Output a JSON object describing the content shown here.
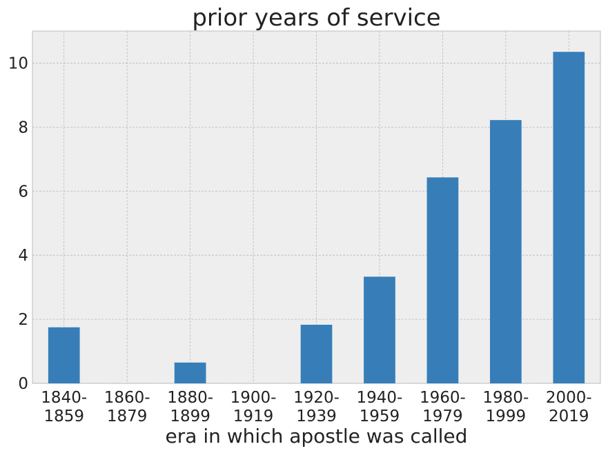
{
  "chart_data": {
    "type": "bar",
    "title": "prior years of service",
    "xlabel": "era in which apostle was called",
    "ylabel": "",
    "categories": [
      [
        "1840-",
        "1859"
      ],
      [
        "1860-",
        "1879"
      ],
      [
        "1880-",
        "1899"
      ],
      [
        "1900-",
        "1919"
      ],
      [
        "1920-",
        "1939"
      ],
      [
        "1940-",
        "1959"
      ],
      [
        "1960-",
        "1979"
      ],
      [
        "1980-",
        "1999"
      ],
      [
        "2000-",
        "2019"
      ]
    ],
    "values": [
      1.75,
      0,
      0.65,
      0,
      1.83,
      3.33,
      6.43,
      8.22,
      10.35
    ],
    "ylim": [
      0,
      11
    ],
    "yticks": [
      0,
      2,
      4,
      6,
      8,
      10
    ],
    "grid": true,
    "bar_color": "#377eb8",
    "background_color": "#eeeeee"
  }
}
